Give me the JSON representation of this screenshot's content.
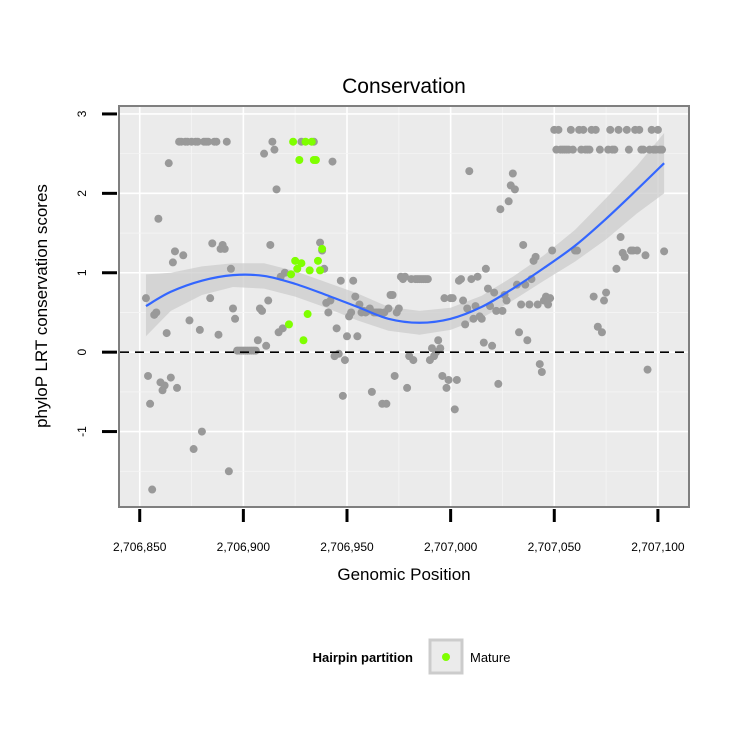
{
  "chart_data": {
    "type": "scatter",
    "title": "Conservation",
    "xlabel": "Genomic Position",
    "ylabel": "phyloP LRT conservation scores",
    "xlim": [
      2706840,
      2707115
    ],
    "ylim": [
      -1.95,
      3.1
    ],
    "x_ticks": [
      {
        "value": 2706850,
        "label": "2,706,850"
      },
      {
        "value": 2706900,
        "label": "2,706,900"
      },
      {
        "value": 2706950,
        "label": "2,706,950"
      },
      {
        "value": 2707000,
        "label": "2,707,000"
      },
      {
        "value": 2707050,
        "label": "2,707,050"
      },
      {
        "value": 2707100,
        "label": "2,707,100"
      }
    ],
    "y_ticks": [
      {
        "value": -1,
        "label": "-1"
      },
      {
        "value": 0,
        "label": "0"
      },
      {
        "value": 1,
        "label": "1"
      },
      {
        "value": 2,
        "label": "2"
      },
      {
        "value": 3,
        "label": "3"
      }
    ],
    "grid": true,
    "reference_line": {
      "y": 0,
      "style": "dashed",
      "color": "#000000"
    },
    "legend": {
      "title": "Hairpin partition",
      "position": "bottom",
      "entries": [
        {
          "label": "Mature",
          "color": "#7FFF00"
        }
      ]
    },
    "colors": {
      "other": "#999999",
      "mature": "#7FFF00",
      "smooth": "#3366FF",
      "band": "#CCCCCC",
      "panel": "#EBEBEB"
    },
    "series": [
      {
        "group": "other",
        "points": [
          [
            2706853,
            0.68
          ],
          [
            2706854,
            -0.3
          ],
          [
            2706855,
            -0.65
          ],
          [
            2706856,
            -1.73
          ],
          [
            2706857,
            0.47
          ],
          [
            2706858,
            0.5
          ],
          [
            2706859,
            1.68
          ],
          [
            2706860,
            -0.38
          ],
          [
            2706861,
            -0.48
          ],
          [
            2706862,
            -0.42
          ],
          [
            2706863,
            0.24
          ],
          [
            2706864,
            2.38
          ],
          [
            2706865,
            -0.32
          ],
          [
            2706866,
            1.13
          ],
          [
            2706867,
            1.27
          ],
          [
            2706868,
            -0.45
          ],
          [
            2706869,
            2.65
          ],
          [
            2706870,
            2.65
          ],
          [
            2706871,
            1.22
          ],
          [
            2706872,
            2.65
          ],
          [
            2706873,
            2.65
          ],
          [
            2706874,
            0.4
          ],
          [
            2706875,
            2.65
          ],
          [
            2706876,
            -1.22
          ],
          [
            2706877,
            2.65
          ],
          [
            2706878,
            2.65
          ],
          [
            2706879,
            0.28
          ],
          [
            2706880,
            -1.0
          ],
          [
            2706881,
            2.65
          ],
          [
            2706882,
            2.65
          ],
          [
            2706883,
            2.65
          ],
          [
            2706884,
            0.68
          ],
          [
            2706885,
            1.37
          ],
          [
            2706886,
            2.65
          ],
          [
            2706887,
            2.65
          ],
          [
            2706888,
            0.22
          ],
          [
            2706889,
            1.3
          ],
          [
            2706890,
            1.35
          ],
          [
            2706891,
            1.3
          ],
          [
            2706892,
            2.65
          ],
          [
            2706893,
            -1.5
          ],
          [
            2706894,
            1.05
          ],
          [
            2706895,
            0.55
          ],
          [
            2706896,
            0.42
          ],
          [
            2706897,
            0.02
          ],
          [
            2706898,
            0.02
          ],
          [
            2706899,
            0.02
          ],
          [
            2706900,
            0.02
          ],
          [
            2706901,
            0.02
          ],
          [
            2706902,
            0.02
          ],
          [
            2706903,
            0.02
          ],
          [
            2706904,
            0.02
          ],
          [
            2706905,
            0.02
          ],
          [
            2706906,
            0.02
          ],
          [
            2706907,
            0.15
          ],
          [
            2706908,
            0.55
          ],
          [
            2706909,
            0.52
          ],
          [
            2706910,
            2.5
          ],
          [
            2706911,
            0.08
          ],
          [
            2706912,
            0.65
          ],
          [
            2706913,
            1.35
          ],
          [
            2706914,
            2.65
          ],
          [
            2706915,
            2.55
          ],
          [
            2706916,
            2.05
          ],
          [
            2706917,
            0.25
          ],
          [
            2706918,
            0.95
          ],
          [
            2706919,
            0.3
          ],
          [
            2706920,
            1.0
          ],
          [
            2706928,
            2.65
          ],
          [
            2706934,
            2.65
          ],
          [
            2706937,
            1.38
          ],
          [
            2706938,
            1.28
          ],
          [
            2706939,
            1.05
          ],
          [
            2706940,
            0.62
          ],
          [
            2706941,
            0.5
          ],
          [
            2706942,
            0.65
          ],
          [
            2706943,
            2.4
          ],
          [
            2706944,
            -0.05
          ],
          [
            2706945,
            0.3
          ],
          [
            2706946,
            -0.02
          ],
          [
            2706947,
            0.9
          ],
          [
            2706948,
            -0.55
          ],
          [
            2706949,
            -0.1
          ],
          [
            2706950,
            0.2
          ],
          [
            2706951,
            0.45
          ],
          [
            2706952,
            0.5
          ],
          [
            2706953,
            0.9
          ],
          [
            2706954,
            0.7
          ],
          [
            2706955,
            0.2
          ],
          [
            2706956,
            0.6
          ],
          [
            2706957,
            0.5
          ],
          [
            2706958,
            0.52
          ],
          [
            2706959,
            0.5
          ],
          [
            2706960,
            0.52
          ],
          [
            2706961,
            0.55
          ],
          [
            2706962,
            -0.5
          ],
          [
            2706963,
            0.5
          ],
          [
            2706964,
            0.5
          ],
          [
            2706965,
            0.5
          ],
          [
            2706966,
            0.5
          ],
          [
            2706967,
            -0.65
          ],
          [
            2706968,
            0.5
          ],
          [
            2706969,
            -0.65
          ],
          [
            2706970,
            0.55
          ],
          [
            2706971,
            0.72
          ],
          [
            2706972,
            0.72
          ],
          [
            2706973,
            -0.3
          ],
          [
            2706974,
            0.5
          ],
          [
            2706975,
            0.55
          ],
          [
            2706976,
            0.95
          ],
          [
            2706977,
            0.92
          ],
          [
            2706978,
            0.95
          ],
          [
            2706979,
            -0.45
          ],
          [
            2706980,
            -0.05
          ],
          [
            2706981,
            0.92
          ],
          [
            2706982,
            -0.1
          ],
          [
            2706983,
            0.92
          ],
          [
            2706984,
            0.92
          ],
          [
            2706985,
            0.92
          ],
          [
            2706986,
            0.92
          ],
          [
            2706987,
            0.92
          ],
          [
            2706988,
            0.92
          ],
          [
            2706989,
            0.92
          ],
          [
            2706990,
            -0.1
          ],
          [
            2706991,
            0.05
          ],
          [
            2706992,
            -0.05
          ],
          [
            2706993,
            0.0
          ],
          [
            2706994,
            0.15
          ],
          [
            2706995,
            0.05
          ],
          [
            2706996,
            -0.3
          ],
          [
            2706997,
            0.68
          ],
          [
            2706998,
            -0.45
          ],
          [
            2706999,
            -0.35
          ],
          [
            2707000,
            0.68
          ],
          [
            2707001,
            0.68
          ],
          [
            2707002,
            -0.72
          ],
          [
            2707003,
            -0.35
          ],
          [
            2707004,
            0.9
          ],
          [
            2707005,
            0.92
          ],
          [
            2707006,
            0.65
          ],
          [
            2707007,
            0.35
          ],
          [
            2707008,
            0.55
          ],
          [
            2707009,
            2.28
          ],
          [
            2707010,
            0.92
          ],
          [
            2707011,
            0.42
          ],
          [
            2707012,
            0.58
          ],
          [
            2707013,
            0.95
          ],
          [
            2707014,
            0.45
          ],
          [
            2707015,
            0.42
          ],
          [
            2707016,
            0.12
          ],
          [
            2707017,
            1.05
          ],
          [
            2707018,
            0.8
          ],
          [
            2707019,
            0.58
          ],
          [
            2707020,
            0.08
          ],
          [
            2707021,
            0.75
          ],
          [
            2707022,
            0.52
          ],
          [
            2707023,
            -0.4
          ],
          [
            2707024,
            1.8
          ],
          [
            2707025,
            0.52
          ],
          [
            2707026,
            0.72
          ],
          [
            2707027,
            0.65
          ],
          [
            2707028,
            1.9
          ],
          [
            2707029,
            2.1
          ],
          [
            2707030,
            2.25
          ],
          [
            2707031,
            2.05
          ],
          [
            2707032,
            0.85
          ],
          [
            2707033,
            0.25
          ],
          [
            2707034,
            0.6
          ],
          [
            2707035,
            1.35
          ],
          [
            2707036,
            0.85
          ],
          [
            2707037,
            0.15
          ],
          [
            2707038,
            0.6
          ],
          [
            2707039,
            0.92
          ],
          [
            2707040,
            1.15
          ],
          [
            2707041,
            1.2
          ],
          [
            2707042,
            0.6
          ],
          [
            2707043,
            -0.15
          ],
          [
            2707044,
            -0.25
          ],
          [
            2707045,
            0.65
          ],
          [
            2707046,
            0.7
          ],
          [
            2707047,
            0.6
          ],
          [
            2707048,
            0.68
          ],
          [
            2707049,
            1.28
          ],
          [
            2707050,
            2.8
          ],
          [
            2707051,
            2.55
          ],
          [
            2707052,
            2.8
          ],
          [
            2707053,
            2.55
          ],
          [
            2707054,
            2.55
          ],
          [
            2707055,
            2.55
          ],
          [
            2707056,
            2.55
          ],
          [
            2707057,
            2.55
          ],
          [
            2707058,
            2.8
          ],
          [
            2707059,
            2.55
          ],
          [
            2707060,
            1.28
          ],
          [
            2707061,
            1.28
          ],
          [
            2707062,
            2.8
          ],
          [
            2707063,
            2.55
          ],
          [
            2707064,
            2.8
          ],
          [
            2707065,
            2.55
          ],
          [
            2707066,
            2.55
          ],
          [
            2707067,
            2.55
          ],
          [
            2707068,
            2.8
          ],
          [
            2707069,
            0.7
          ],
          [
            2707070,
            2.8
          ],
          [
            2707071,
            0.32
          ],
          [
            2707072,
            2.55
          ],
          [
            2707073,
            0.25
          ],
          [
            2707074,
            0.65
          ],
          [
            2707075,
            0.75
          ],
          [
            2707076,
            2.55
          ],
          [
            2707077,
            2.8
          ],
          [
            2707078,
            2.55
          ],
          [
            2707079,
            2.55
          ],
          [
            2707080,
            1.05
          ],
          [
            2707081,
            2.8
          ],
          [
            2707082,
            1.45
          ],
          [
            2707083,
            1.25
          ],
          [
            2707084,
            1.2
          ],
          [
            2707085,
            2.8
          ],
          [
            2707086,
            2.55
          ],
          [
            2707087,
            1.28
          ],
          [
            2707088,
            1.28
          ],
          [
            2707089,
            2.8
          ],
          [
            2707090,
            1.28
          ],
          [
            2707091,
            2.8
          ],
          [
            2707092,
            2.55
          ],
          [
            2707093,
            2.55
          ],
          [
            2707094,
            1.22
          ],
          [
            2707095,
            -0.22
          ],
          [
            2707096,
            2.55
          ],
          [
            2707097,
            2.8
          ],
          [
            2707098,
            2.55
          ],
          [
            2707099,
            2.55
          ],
          [
            2707100,
            2.8
          ],
          [
            2707101,
            2.55
          ],
          [
            2707102,
            2.55
          ],
          [
            2707103,
            1.27
          ]
        ]
      },
      {
        "group": "mature",
        "name": "Mature",
        "points": [
          [
            2706922,
            0.35
          ],
          [
            2706923,
            0.98
          ],
          [
            2706924,
            2.65
          ],
          [
            2706925,
            1.15
          ],
          [
            2706926,
            1.05
          ],
          [
            2706927,
            2.42
          ],
          [
            2706928,
            1.12
          ],
          [
            2706929,
            0.15
          ],
          [
            2706930,
            2.65
          ],
          [
            2706931,
            0.48
          ],
          [
            2706932,
            1.03
          ],
          [
            2706933,
            2.65
          ],
          [
            2706934,
            2.42
          ],
          [
            2706935,
            2.42
          ],
          [
            2706936,
            1.15
          ],
          [
            2706937,
            1.03
          ],
          [
            2706938,
            1.3
          ]
        ]
      }
    ],
    "smooth_line": {
      "x": [
        2706853,
        2706865,
        2706880,
        2706895,
        2706910,
        2706925,
        2706940,
        2706955,
        2706970,
        2706985,
        2707000,
        2707015,
        2707030,
        2707045,
        2707060,
        2707075,
        2707090,
        2707103
      ],
      "y": [
        0.58,
        0.76,
        0.9,
        0.97,
        0.96,
        0.86,
        0.72,
        0.57,
        0.42,
        0.37,
        0.42,
        0.57,
        0.8,
        1.06,
        1.34,
        1.68,
        2.05,
        2.38
      ],
      "ci_low": [
        0.2,
        0.52,
        0.72,
        0.82,
        0.8,
        0.7,
        0.56,
        0.4,
        0.27,
        0.22,
        0.28,
        0.43,
        0.65,
        0.9,
        1.14,
        1.42,
        1.75,
        2.0
      ],
      "ci_high": [
        0.98,
        1.0,
        1.08,
        1.12,
        1.12,
        1.02,
        0.88,
        0.74,
        0.57,
        0.52,
        0.56,
        0.71,
        0.95,
        1.22,
        1.54,
        1.94,
        2.35,
        2.76
      ]
    }
  }
}
